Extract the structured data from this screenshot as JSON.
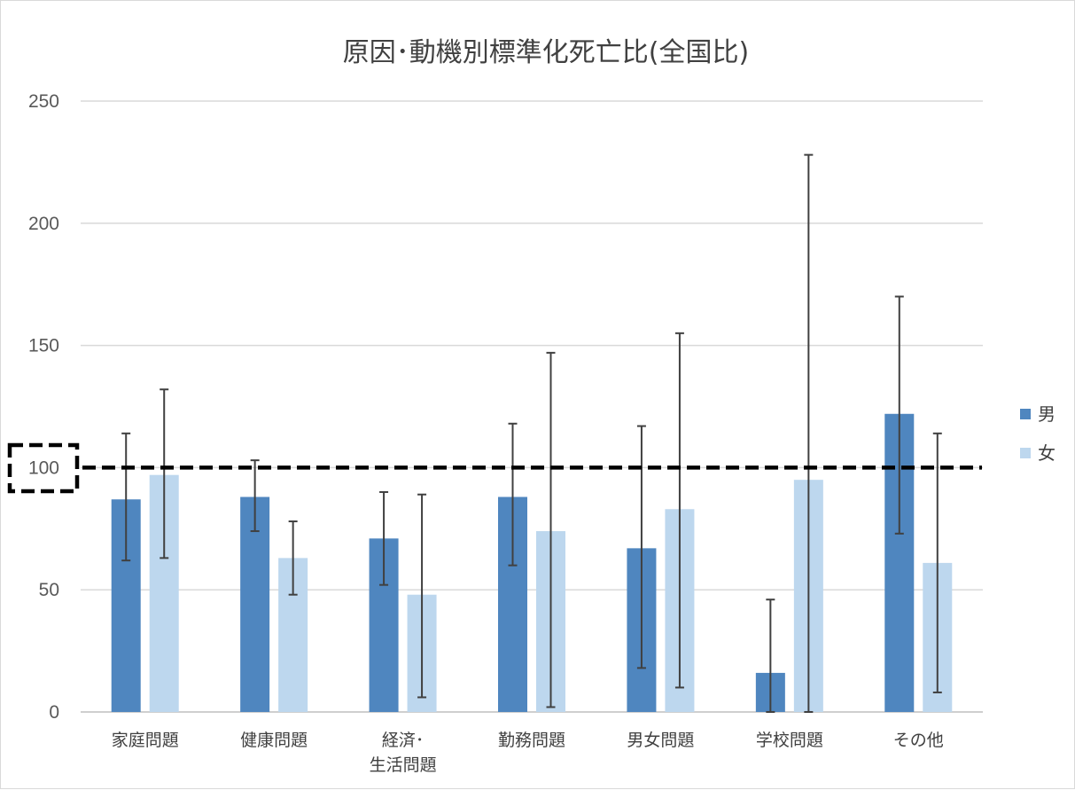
{
  "chart_data": {
    "type": "bar",
    "title": "原因･動機別標準化死亡比(全国比)",
    "xlabel": "",
    "ylabel": "",
    "ylim": [
      0,
      250
    ],
    "yticks": [
      "0",
      "50",
      "100",
      "150",
      "200",
      "250"
    ],
    "grid": true,
    "legend_position": "right",
    "reference_line": 100,
    "categories": [
      [
        "家庭問題"
      ],
      [
        "健康問題"
      ],
      [
        "経済･",
        "生活問題"
      ],
      [
        "勤務問題"
      ],
      [
        "男女問題"
      ],
      [
        "学校問題"
      ],
      [
        "その他"
      ]
    ],
    "series": [
      {
        "name": "男",
        "color": "#4f86bf",
        "values": [
          87,
          88,
          71,
          88,
          67,
          16,
          122
        ],
        "error_low": [
          62,
          74,
          52,
          60,
          18,
          0,
          73
        ],
        "error_high": [
          114,
          103,
          90,
          118,
          117,
          46,
          170
        ]
      },
      {
        "name": "女",
        "color": "#bdd7ee",
        "values": [
          97,
          63,
          48,
          74,
          83,
          95,
          61
        ],
        "error_low": [
          63,
          48,
          6,
          2,
          10,
          0,
          8
        ],
        "error_high": [
          132,
          78,
          89,
          147,
          155,
          228,
          114
        ]
      }
    ]
  }
}
